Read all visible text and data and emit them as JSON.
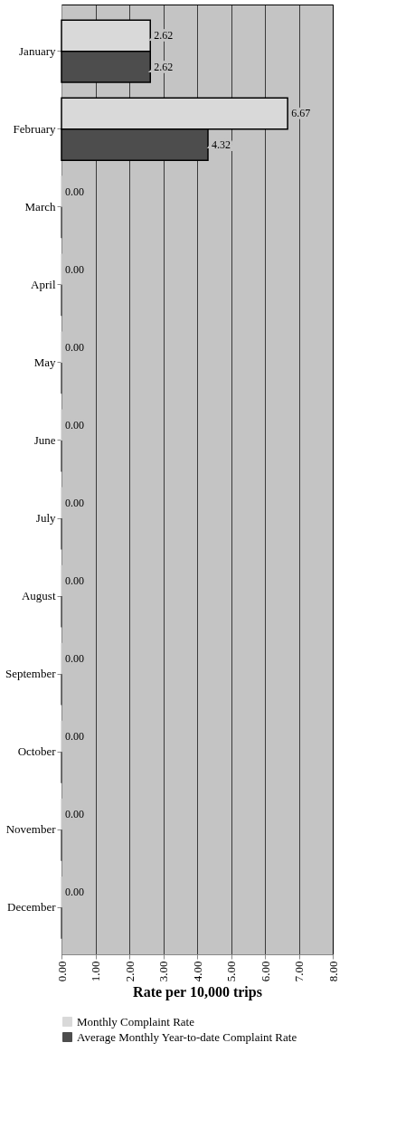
{
  "chart_data": {
    "type": "bar",
    "orientation": "horizontal",
    "xlabel": "Rate per 10,000 trips",
    "categories": [
      "January",
      "February",
      "March",
      "April",
      "May",
      "June",
      "July",
      "August",
      "September",
      "October",
      "November",
      "December"
    ],
    "series": [
      {
        "name": "Monthly Complaint Rate",
        "color": "#d9d9d9",
        "values": [
          2.62,
          6.67,
          0,
          0,
          0,
          0,
          0,
          0,
          0,
          0,
          0,
          0
        ],
        "value_labels": [
          "2.62",
          "6.67",
          "0.00",
          "0.00",
          "0.00",
          "0.00",
          "0.00",
          "0.00",
          "0.00",
          "0.00",
          "0.00",
          "0.00"
        ]
      },
      {
        "name": "Average Monthly Year-to-date Complaint Rate",
        "color": "#4d4d4d",
        "values": [
          2.62,
          4.32,
          0,
          0,
          0,
          0,
          0,
          0,
          0,
          0,
          0,
          0
        ],
        "value_labels": [
          "2.62",
          "4.32",
          null,
          null,
          null,
          null,
          null,
          null,
          null,
          null,
          null,
          null
        ]
      }
    ],
    "xlim": [
      0,
      8
    ],
    "xticks": [
      {
        "value": 0,
        "label": "0.00"
      },
      {
        "value": 1,
        "label": "1.00"
      },
      {
        "value": 2,
        "label": "2.00"
      },
      {
        "value": 3,
        "label": "3.00"
      },
      {
        "value": 4,
        "label": "4.00"
      },
      {
        "value": 5,
        "label": "5.00"
      },
      {
        "value": 6,
        "label": "6.00"
      },
      {
        "value": 7,
        "label": "7.00"
      },
      {
        "value": 8,
        "label": "8.00"
      }
    ],
    "grid": "x",
    "legend": "bottom"
  }
}
